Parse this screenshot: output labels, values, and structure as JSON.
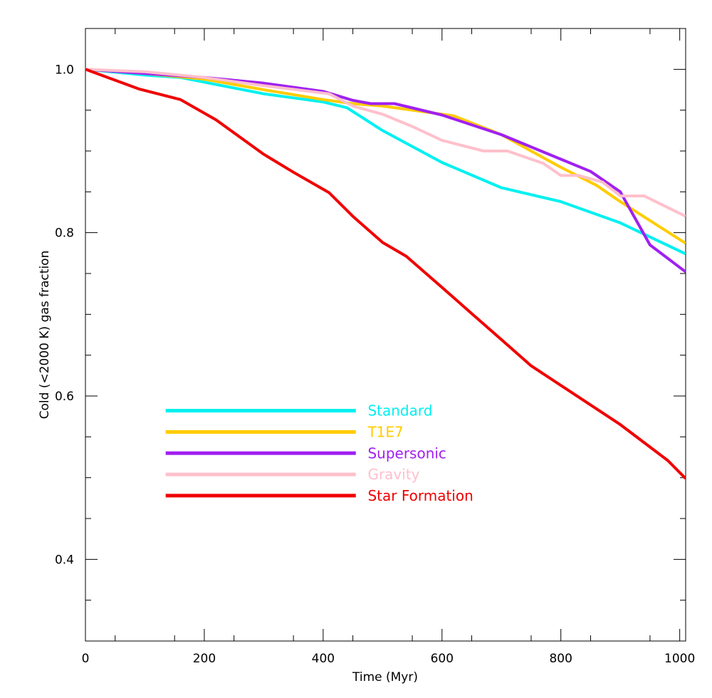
{
  "chart_data": {
    "type": "line",
    "title": "",
    "xlabel": "Time (Myr)",
    "ylabel": "Cold (<2000 K) gas fraction",
    "xlim": [
      0,
      1010
    ],
    "ylim": [
      0.3,
      1.05
    ],
    "xticks": [
      0,
      200,
      400,
      600,
      800,
      1000
    ],
    "xtick_labels": [
      "0",
      "200",
      "400",
      "600",
      "800",
      "1000"
    ],
    "yticks": [
      0.4,
      0.6,
      0.8,
      1.0
    ],
    "ytick_labels": [
      "0.4",
      "0.6",
      "0.8",
      "1.0"
    ],
    "legend_position": "lower-left",
    "series": [
      {
        "name": "Standard",
        "color": "#00f0f0",
        "x": [
          0,
          100,
          160,
          300,
          400,
          440,
          500,
          600,
          700,
          800,
          900,
          1010
        ],
        "y": [
          1.0,
          0.993,
          0.99,
          0.97,
          0.96,
          0.953,
          0.925,
          0.886,
          0.855,
          0.838,
          0.812,
          0.774
        ]
      },
      {
        "name": "T1E7",
        "color": "#ffcc00",
        "x": [
          0,
          100,
          200,
          300,
          400,
          450,
          500,
          600,
          620,
          700,
          800,
          860,
          900,
          1010
        ],
        "y": [
          1.0,
          0.995,
          0.988,
          0.975,
          0.963,
          0.958,
          0.955,
          0.945,
          0.943,
          0.92,
          0.88,
          0.858,
          0.838,
          0.787
        ]
      },
      {
        "name": "Supersonic",
        "color": "#a020f0",
        "x": [
          0,
          100,
          200,
          300,
          400,
          450,
          480,
          520,
          600,
          700,
          800,
          850,
          900,
          950,
          1010
        ],
        "y": [
          1.0,
          0.995,
          0.99,
          0.983,
          0.973,
          0.962,
          0.958,
          0.958,
          0.944,
          0.92,
          0.89,
          0.875,
          0.85,
          0.785,
          0.752
        ]
      },
      {
        "name": "Gravity",
        "color": "#ffc0cb",
        "x": [
          0,
          100,
          200,
          300,
          410,
          450,
          500,
          550,
          600,
          670,
          710,
          770,
          800,
          830,
          870,
          900,
          940,
          1010
        ],
        "y": [
          1.0,
          0.997,
          0.99,
          0.98,
          0.97,
          0.955,
          0.945,
          0.93,
          0.913,
          0.9,
          0.9,
          0.885,
          0.87,
          0.87,
          0.862,
          0.845,
          0.845,
          0.82
        ]
      },
      {
        "name": "Star Formation",
        "color": "#f00000",
        "x": [
          0,
          90,
          160,
          220,
          300,
          350,
          410,
          450,
          500,
          540,
          600,
          650,
          700,
          750,
          800,
          850,
          900,
          980,
          1010
        ],
        "y": [
          1.0,
          0.976,
          0.963,
          0.938,
          0.896,
          0.874,
          0.849,
          0.82,
          0.788,
          0.771,
          0.733,
          0.701,
          0.669,
          0.637,
          0.613,
          0.589,
          0.565,
          0.521,
          0.499
        ]
      }
    ]
  }
}
